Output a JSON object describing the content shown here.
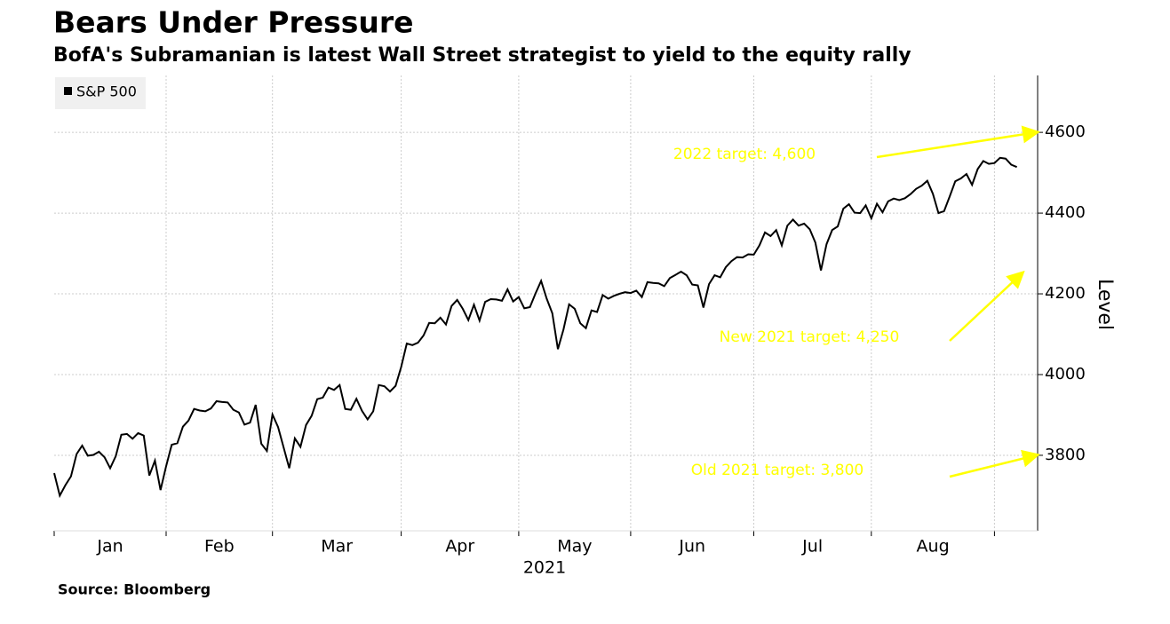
{
  "chart_data": {
    "type": "line",
    "title": "Bears Under Pressure",
    "subtitle": "BofA's Subramanian is latest Wall Street strategist to yield to the equity rally",
    "source": "Source: Bloomberg",
    "xlabel": "2021",
    "ylabel": "Level",
    "categories": [
      "Jan",
      "Feb",
      "Mar",
      "Apr",
      "May",
      "Jun",
      "Jul",
      "Aug",
      null
    ],
    "series": [
      {
        "name": "S&P 500",
        "color": "#000000",
        "values": [
          [
            3756,
            3700,
            3726,
            3748,
            3803,
            3824,
            3799,
            3801,
            3809,
            3795,
            3768,
            3798,
            3851,
            3853,
            3841,
            3855,
            3849,
            3750,
            3787,
            3714
          ],
          [
            3773,
            3826,
            3830,
            3871,
            3886,
            3915,
            3911,
            3909,
            3916,
            3934,
            3932,
            3931,
            3913,
            3906,
            3876,
            3881,
            3925,
            3829,
            3811
          ],
          [
            3901,
            3870,
            3819,
            3768,
            3842,
            3821,
            3875,
            3898,
            3939,
            3943,
            3968,
            3962,
            3974,
            3915,
            3913,
            3940,
            3910,
            3889,
            3909,
            3974,
            3971,
            3958,
            3972
          ],
          [
            4019,
            4077,
            4073,
            4079,
            4097,
            4128,
            4127,
            4141,
            4124,
            4170,
            4185,
            4163,
            4135,
            4173,
            4134,
            4180,
            4187,
            4186,
            4183,
            4211,
            4181
          ],
          [
            4192,
            4164,
            4167,
            4201,
            4232,
            4188,
            4152,
            4063,
            4112,
            4174,
            4163,
            4127,
            4115,
            4159,
            4155,
            4197,
            4188,
            4195,
            4200,
            4204
          ],
          [
            4202,
            4208,
            4192,
            4229,
            4227,
            4226,
            4219,
            4239,
            4247,
            4255,
            4246,
            4223,
            4221,
            4166,
            4224,
            4246,
            4241,
            4266,
            4281,
            4291,
            4290,
            4298
          ],
          [
            4297,
            4320,
            4352,
            4343,
            4358,
            4320,
            4369,
            4384,
            4369,
            4374,
            4360,
            4327,
            4258,
            4323,
            4358,
            4367,
            4411,
            4422,
            4401,
            4400,
            4419
          ],
          [
            4387,
            4423,
            4402,
            4429,
            4436,
            4432,
            4437,
            4447,
            4460,
            4468,
            4480,
            4448,
            4400,
            4405,
            4441,
            4479,
            4486,
            4497,
            4470,
            4509,
            4529,
            4522
          ],
          [
            4524,
            4537,
            4535,
            4520,
            4514
          ]
        ]
      }
    ],
    "ylim": [
      3613,
      4741
    ],
    "yticks": [
      3800,
      4000,
      4200,
      4400,
      4600
    ],
    "grid": true,
    "legend": "top-left",
    "annotations": [
      {
        "text": "2022 target: 4,600",
        "value": 4600,
        "color": "#ffff00"
      },
      {
        "text": "New 2021 target: 4,250",
        "value": 4250,
        "color": "#ffff00"
      },
      {
        "text": "Old 2021 target: 3,800",
        "value": 3800,
        "color": "#ffff00"
      }
    ]
  }
}
